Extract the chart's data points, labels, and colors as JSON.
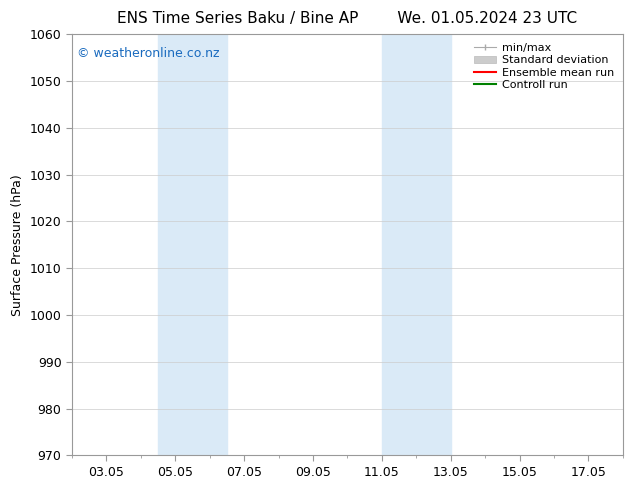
{
  "title_left": "ENS Time Series Baku / Bine AP",
  "title_right": "We. 01.05.2024 23 UTC",
  "ylabel": "Surface Pressure (hPa)",
  "ylim": [
    970,
    1060
  ],
  "yticks": [
    970,
    980,
    990,
    1000,
    1010,
    1020,
    1030,
    1040,
    1050,
    1060
  ],
  "xlim": [
    0,
    16
  ],
  "xtick_labels": [
    "03.05",
    "05.05",
    "07.05",
    "09.05",
    "11.05",
    "13.05",
    "15.05",
    "17.05"
  ],
  "xtick_positions": [
    1,
    3,
    5,
    7,
    9,
    11,
    13,
    15
  ],
  "shaded_regions": [
    {
      "x_start": 2.5,
      "x_end": 4.5,
      "color": "#daeaf7"
    },
    {
      "x_start": 9.0,
      "x_end": 11.0,
      "color": "#daeaf7"
    }
  ],
  "watermark_text": "© weatheronline.co.nz",
  "watermark_color": "#1a6bbf",
  "watermark_fontsize": 9,
  "bg_color": "#ffffff",
  "grid_color": "#cccccc",
  "title_fontsize": 11,
  "axis_fontsize": 9,
  "tick_fontsize": 9,
  "legend_fontsize": 8
}
